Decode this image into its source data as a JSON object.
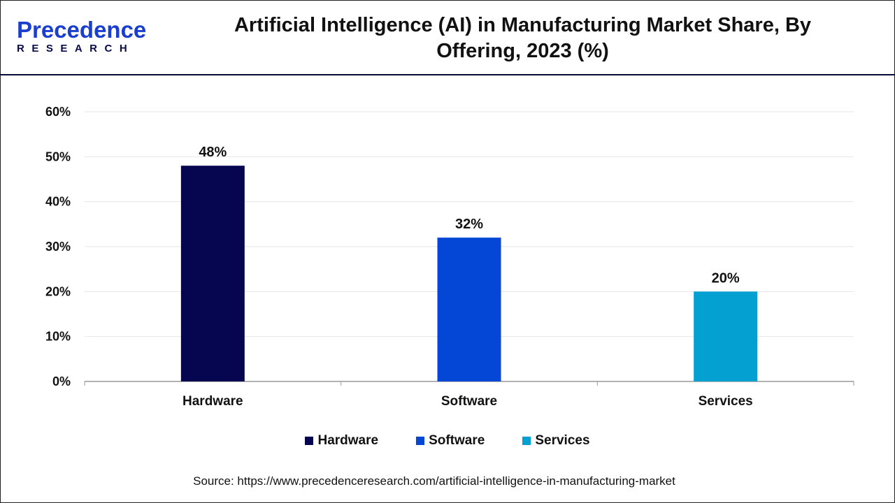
{
  "logo": {
    "line1": "Precedence",
    "line2": "RESEARCH"
  },
  "title": "Artificial Intelligence (AI) in Manufacturing Market Share, By Offering, 2023 (%)",
  "chart_data": {
    "type": "bar",
    "title": "Artificial Intelligence (AI) in Manufacturing Market Share, By Offering, 2023 (%)",
    "categories": [
      "Hardware",
      "Software",
      "Services"
    ],
    "values": [
      48,
      32,
      20
    ],
    "data_labels": [
      "48%",
      "32%",
      "20%"
    ],
    "colors": [
      "#05064f",
      "#0446d6",
      "#05a0d2"
    ],
    "ylim": [
      0,
      60
    ],
    "yticks": [
      "0%",
      "10%",
      "20%",
      "30%",
      "40%",
      "50%",
      "60%"
    ],
    "grid": true,
    "legend": "bottom",
    "xlabel": "",
    "ylabel": ""
  },
  "source": "Source: https://www.precedenceresearch.com/artificial-intelligence-in-manufacturing-market"
}
